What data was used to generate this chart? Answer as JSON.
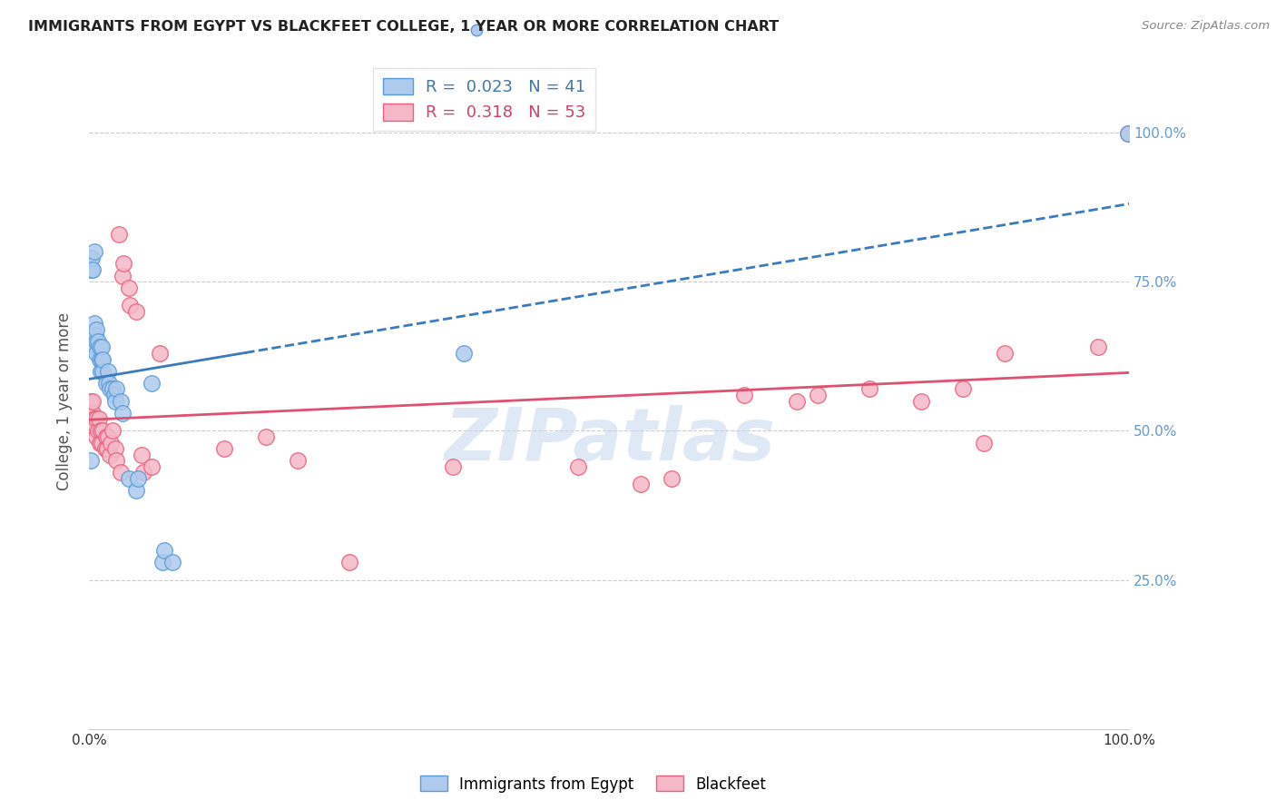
{
  "title": "IMMIGRANTS FROM EGYPT VS BLACKFEET COLLEGE, 1 YEAR OR MORE CORRELATION CHART",
  "source": "Source: ZipAtlas.com",
  "ylabel": "College, 1 year or more",
  "blue_R": 0.023,
  "blue_N": 41,
  "pink_R": 0.318,
  "pink_N": 53,
  "blue_label": "Immigrants from Egypt",
  "pink_label": "Blackfeet",
  "blue_color": "#aecbee",
  "pink_color": "#f5b8c8",
  "blue_edge_color": "#5b9bd5",
  "pink_edge_color": "#e8607a",
  "blue_line_color": "#3a7abf",
  "pink_line_color": "#e05070",
  "watermark": "ZIPatlas",
  "right_tick_color": "#6699cc",
  "blue_points_x": [
    0.001,
    0.001,
    0.002,
    0.002,
    0.003,
    0.005,
    0.005,
    0.006,
    0.006,
    0.007,
    0.007,
    0.007,
    0.008,
    0.01,
    0.01,
    0.011,
    0.012,
    0.012,
    0.013,
    0.013,
    0.016,
    0.018,
    0.019,
    0.02,
    0.022,
    0.024,
    0.025,
    0.026,
    0.03,
    0.032,
    0.038,
    0.045,
    0.047,
    0.06,
    0.07,
    0.072,
    0.08,
    0.36,
    0.005,
    0.999,
    0.001
  ],
  "blue_points_y": [
    0.77,
    0.79,
    0.77,
    0.79,
    0.77,
    0.66,
    0.68,
    0.64,
    0.66,
    0.63,
    0.65,
    0.67,
    0.65,
    0.62,
    0.64,
    0.6,
    0.62,
    0.64,
    0.6,
    0.62,
    0.58,
    0.6,
    0.58,
    0.57,
    0.57,
    0.56,
    0.55,
    0.57,
    0.55,
    0.53,
    0.42,
    0.4,
    0.42,
    0.58,
    0.28,
    0.3,
    0.28,
    0.63,
    0.8,
    0.999,
    0.45
  ],
  "pink_points_x": [
    0.001,
    0.001,
    0.002,
    0.003,
    0.003,
    0.005,
    0.006,
    0.007,
    0.007,
    0.008,
    0.009,
    0.01,
    0.011,
    0.012,
    0.013,
    0.015,
    0.016,
    0.017,
    0.018,
    0.02,
    0.021,
    0.022,
    0.025,
    0.026,
    0.028,
    0.03,
    0.032,
    0.033,
    0.038,
    0.039,
    0.045,
    0.05,
    0.052,
    0.06,
    0.068,
    0.13,
    0.17,
    0.2,
    0.25,
    0.35,
    0.47,
    0.53,
    0.56,
    0.63,
    0.68,
    0.7,
    0.75,
    0.8,
    0.84,
    0.86,
    0.88,
    0.97,
    0.999
  ],
  "pink_points_y": [
    0.53,
    0.55,
    0.51,
    0.53,
    0.55,
    0.52,
    0.51,
    0.49,
    0.52,
    0.5,
    0.52,
    0.48,
    0.5,
    0.48,
    0.5,
    0.47,
    0.49,
    0.47,
    0.49,
    0.46,
    0.48,
    0.5,
    0.47,
    0.45,
    0.83,
    0.43,
    0.76,
    0.78,
    0.74,
    0.71,
    0.7,
    0.46,
    0.43,
    0.44,
    0.63,
    0.47,
    0.49,
    0.45,
    0.28,
    0.44,
    0.44,
    0.41,
    0.42,
    0.56,
    0.55,
    0.56,
    0.57,
    0.55,
    0.57,
    0.48,
    0.63,
    0.64,
    0.999
  ]
}
